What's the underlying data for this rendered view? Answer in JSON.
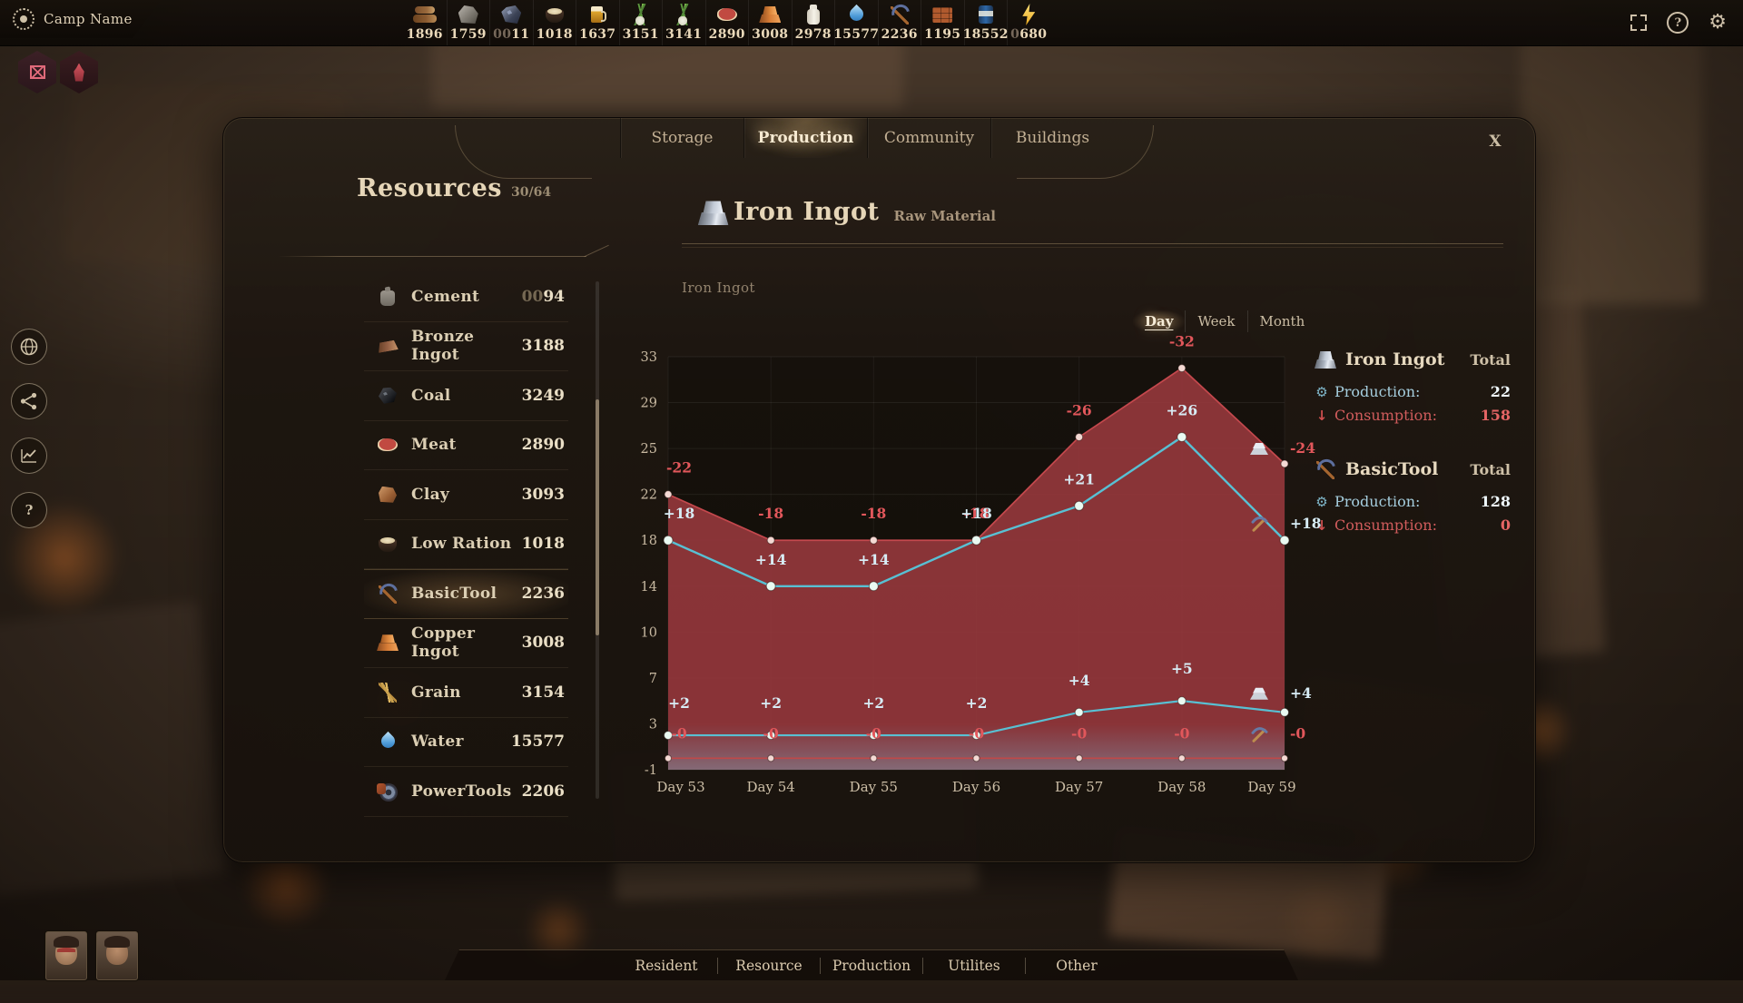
{
  "window": {
    "camp_name": "Camp Name",
    "close_label": "X"
  },
  "topbar": {
    "resources": [
      {
        "icon": "wood",
        "dim": "",
        "value": "1896"
      },
      {
        "icon": "stone",
        "dim": "",
        "value": "1759"
      },
      {
        "icon": "iron-ore",
        "dim": "00",
        "value": "11"
      },
      {
        "icon": "low-ration",
        "dim": "",
        "value": "1018"
      },
      {
        "icon": "beer",
        "dim": "",
        "value": "1637"
      },
      {
        "icon": "fennel",
        "dim": "",
        "value": "3151"
      },
      {
        "icon": "fennel",
        "dim": "",
        "value": "3141"
      },
      {
        "icon": "meat",
        "dim": "",
        "value": "2890"
      },
      {
        "icon": "copper-ingot",
        "dim": "",
        "value": "3008"
      },
      {
        "icon": "milk",
        "dim": "",
        "value": "2978"
      },
      {
        "icon": "water",
        "dim": "",
        "value": "15577"
      },
      {
        "icon": "basic-tool",
        "dim": "",
        "value": "2236"
      },
      {
        "icon": "bricks",
        "dim": "",
        "value": "1195"
      },
      {
        "icon": "canned-goods",
        "dim": "",
        "value": "18552"
      },
      {
        "icon": "power",
        "dim": "0",
        "value": "680"
      }
    ]
  },
  "alerts": [
    {
      "icon": "crate"
    },
    {
      "icon": "flame"
    }
  ],
  "side_nav": [
    {
      "icon": "globe"
    },
    {
      "icon": "share"
    },
    {
      "icon": "stats"
    },
    {
      "icon": "help"
    }
  ],
  "dialog": {
    "tabs": [
      {
        "label": "Storage",
        "active": false
      },
      {
        "label": "Production",
        "active": true
      },
      {
        "label": "Community",
        "active": false
      },
      {
        "label": "Buildings",
        "active": false
      }
    ],
    "resources_panel": {
      "title": "Resources",
      "count": "30/64",
      "items": [
        {
          "icon": "cement",
          "name": "Cement",
          "dim": "00",
          "value": "94",
          "selected": false
        },
        {
          "icon": "bronze-ingot",
          "name": "Bronze Ingot",
          "dim": "",
          "value": "3188",
          "selected": false
        },
        {
          "icon": "coal",
          "name": "Coal",
          "dim": "",
          "value": "3249",
          "selected": false
        },
        {
          "icon": "meat",
          "name": "Meat",
          "dim": "",
          "value": "2890",
          "selected": false
        },
        {
          "icon": "clay",
          "name": "Clay",
          "dim": "",
          "value": "3093",
          "selected": false
        },
        {
          "icon": "low-ration",
          "name": "Low Ration",
          "dim": "",
          "value": "1018",
          "selected": false
        },
        {
          "icon": "basic-tool",
          "name": "BasicTool",
          "dim": "",
          "value": "2236",
          "selected": true
        },
        {
          "icon": "copper-ingot",
          "name": "Copper Ingot",
          "dim": "",
          "value": "3008",
          "selected": false
        },
        {
          "icon": "grain",
          "name": "Grain",
          "dim": "",
          "value": "3154",
          "selected": false
        },
        {
          "icon": "water",
          "name": "Water",
          "dim": "",
          "value": "15577",
          "selected": false
        },
        {
          "icon": "power-tools",
          "name": "PowerTools",
          "dim": "",
          "value": "2206",
          "selected": false
        }
      ]
    },
    "detail": {
      "icon": "iron-ingot",
      "title": "Iron Ingot",
      "subtitle": "Raw Material"
    },
    "summary": [
      {
        "icon": "iron-ingot",
        "name": "Iron Ingot",
        "total_label": "Total",
        "production_label": "Production:",
        "production_value": "22",
        "consumption_label": "Consumption:",
        "consumption_value": "158"
      },
      {
        "icon": "basic-tool",
        "name": "BasicTool",
        "total_label": "Total",
        "production_label": "Production:",
        "production_value": "128",
        "consumption_label": "Consumption:",
        "consumption_value": "0"
      }
    ]
  },
  "bottom_tabs": [
    {
      "label": "Resident"
    },
    {
      "label": "Resource"
    },
    {
      "label": "Production"
    },
    {
      "label": "Utilites"
    },
    {
      "label": "Other"
    }
  ],
  "colors": {
    "accent_red": "#e2575b",
    "accent_blue": "#5ec3d5",
    "area_fill": "#9a393e",
    "gold": "#e8d5b5"
  },
  "chart_data": {
    "type": "line",
    "title": "Iron Ingot",
    "x_labels": [
      "Day 53",
      "Day 54",
      "Day 55",
      "Day 56",
      "Day 57",
      "Day 58",
      "Day 59"
    ],
    "y_ticks": [
      33,
      29,
      25,
      22,
      18,
      14,
      10,
      7,
      3,
      -1
    ],
    "ylim": [
      -1,
      33
    ],
    "grid": true,
    "range_options": [
      "Day",
      "Week",
      "Month"
    ],
    "active_range": "Day",
    "series": [
      {
        "name": "Iron Ingot Consumption",
        "kind": "area",
        "color": "#c4484d",
        "fill": "#9a393e",
        "values": [
          22,
          18,
          18,
          18,
          26,
          32,
          24
        ],
        "labels": [
          "-22",
          "-18",
          "-18",
          "-18",
          "-26",
          "-32",
          "-24"
        ],
        "end_icon": "iron-ingot"
      },
      {
        "name": "BasicTool Production",
        "kind": "line",
        "color": "#58c0d3",
        "values": [
          18,
          14,
          14,
          18,
          21,
          26,
          18
        ],
        "labels": [
          "+18",
          "+14",
          "+14",
          "+18",
          "+21",
          "+26",
          "+18"
        ],
        "end_icon": "basic-tool"
      },
      {
        "name": "Iron Ingot Production",
        "kind": "line",
        "color": "#58c0d3",
        "values": [
          2,
          2,
          2,
          2,
          4,
          5,
          4
        ],
        "labels": [
          "+2",
          "+2",
          "+2",
          "+2",
          "+4",
          "+5",
          "+4"
        ],
        "end_icon": "iron-ingot"
      },
      {
        "name": "BasicTool Consumption",
        "kind": "line",
        "color": "#c04848",
        "values": [
          0,
          0,
          0,
          0,
          0,
          0,
          0
        ],
        "labels": [
          "-0",
          "-0",
          "-0",
          "-0",
          "-0",
          "-0",
          "-0"
        ],
        "end_icon": "basic-tool"
      }
    ]
  }
}
